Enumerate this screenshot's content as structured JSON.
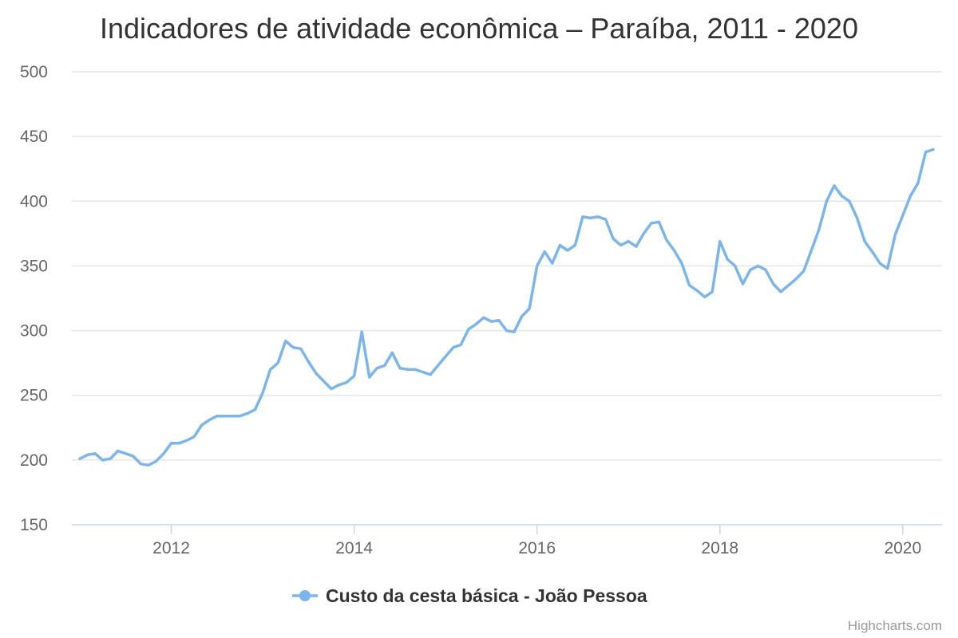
{
  "chart_data": {
    "type": "line",
    "title": "Indicadores de atividade econômica – Paraíba, 2011 - 2020",
    "xlabel": "",
    "ylabel": "",
    "ylim": [
      150,
      500
    ],
    "yticks": [
      150,
      200,
      250,
      300,
      350,
      400,
      450,
      500
    ],
    "xticks": [
      "2012",
      "2014",
      "2016",
      "2018",
      "2020"
    ],
    "xrange": [
      "2011-01",
      "2020-05"
    ],
    "grid": true,
    "legend_position": "bottom-center",
    "series": [
      {
        "name": "Custo da cesta básica - João Pessoa",
        "color": "#7cb5ec",
        "x": [
          "2011-01",
          "2011-02",
          "2011-03",
          "2011-04",
          "2011-05",
          "2011-06",
          "2011-07",
          "2011-08",
          "2011-09",
          "2011-10",
          "2011-11",
          "2011-12",
          "2012-01",
          "2012-02",
          "2012-03",
          "2012-04",
          "2012-05",
          "2012-06",
          "2012-07",
          "2012-08",
          "2012-09",
          "2012-10",
          "2012-11",
          "2012-12",
          "2013-01",
          "2013-02",
          "2013-03",
          "2013-04",
          "2013-05",
          "2013-06",
          "2013-07",
          "2013-08",
          "2013-09",
          "2013-10",
          "2013-11",
          "2013-12",
          "2014-01",
          "2014-02",
          "2014-03",
          "2014-04",
          "2014-05",
          "2014-06",
          "2014-07",
          "2014-08",
          "2014-09",
          "2014-10",
          "2014-11",
          "2014-12",
          "2015-01",
          "2015-02",
          "2015-03",
          "2015-04",
          "2015-05",
          "2015-06",
          "2015-07",
          "2015-08",
          "2015-09",
          "2015-10",
          "2015-11",
          "2015-12",
          "2016-01",
          "2016-02",
          "2016-03",
          "2016-04",
          "2016-05",
          "2016-06",
          "2016-07",
          "2016-08",
          "2016-09",
          "2016-10",
          "2016-11",
          "2016-12",
          "2017-01",
          "2017-02",
          "2017-03",
          "2017-04",
          "2017-05",
          "2017-06",
          "2017-07",
          "2017-08",
          "2017-09",
          "2017-10",
          "2017-11",
          "2017-12",
          "2018-01",
          "2018-02",
          "2018-03",
          "2018-04",
          "2018-05",
          "2018-06",
          "2018-07",
          "2018-08",
          "2018-09",
          "2018-10",
          "2018-11",
          "2018-12",
          "2019-01",
          "2019-02",
          "2019-03",
          "2019-04",
          "2019-05",
          "2019-06",
          "2019-07",
          "2019-08",
          "2019-09",
          "2019-10",
          "2019-11",
          "2019-12",
          "2020-01",
          "2020-02",
          "2020-03",
          "2020-04",
          "2020-05"
        ],
        "values": [
          201,
          204,
          205,
          200,
          201,
          207,
          205,
          203,
          197,
          196,
          199,
          205,
          213,
          213,
          215,
          218,
          227,
          231,
          234,
          234,
          234,
          234,
          236,
          239,
          252,
          270,
          275,
          292,
          287,
          286,
          276,
          267,
          261,
          255,
          258,
          260,
          265,
          299,
          264,
          271,
          273,
          283,
          271,
          270,
          270,
          268,
          266,
          273,
          280,
          287,
          289,
          301,
          305,
          310,
          307,
          308,
          300,
          299,
          311,
          317,
          350,
          361,
          352,
          366,
          362,
          366,
          388,
          387,
          388,
          386,
          371,
          366,
          369,
          365,
          375,
          383,
          384,
          370,
          362,
          352,
          335,
          331,
          326,
          330,
          369,
          355,
          350,
          336,
          347,
          350,
          347,
          336,
          330,
          335,
          340,
          346,
          362,
          378,
          400,
          412,
          404,
          400,
          387,
          369,
          361,
          352,
          348,
          374,
          389,
          404,
          414,
          438,
          440
        ]
      }
    ]
  },
  "credits": "Highcharts.com"
}
